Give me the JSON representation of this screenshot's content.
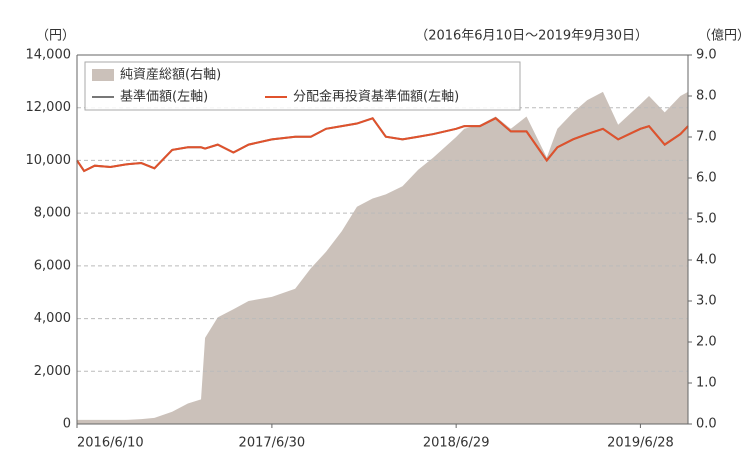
{
  "chart_data": {
    "type": "line",
    "annotation": "（2016年6月10日～2019年9月30日）",
    "ylabel": "（円）",
    "y2label": "（億円）",
    "x": [
      "2016/6/10",
      "2016/6/24",
      "2016/7/15",
      "2016/8/15",
      "2016/9/15",
      "2016/10/15",
      "2016/11/10",
      "2016/12/15",
      "2017/1/15",
      "2017/2/10",
      "2017/2/18",
      "2017/3/15",
      "2017/4/15",
      "2017/5/15",
      "2017/6/30",
      "2017/8/15",
      "2017/9/15",
      "2017/10/15",
      "2017/11/15",
      "2017/12/15",
      "2018/1/15",
      "2018/2/10",
      "2018/3/15",
      "2018/4/15",
      "2018/5/15",
      "2018/6/29",
      "2018/7/15",
      "2018/8/15",
      "2018/9/15",
      "2018/10/15",
      "2018/11/15",
      "2018/12/25",
      "2019/1/15",
      "2019/2/15",
      "2019/3/15",
      "2019/4/15",
      "2019/5/15",
      "2019/6/28",
      "2019/7/15",
      "2019/8/15",
      "2019/9/15",
      "2019/9/30"
    ],
    "series": [
      {
        "name": "純資産総額(右軸)",
        "type": "area",
        "axis": "y2",
        "color": "#cbc1ba",
        "values": [
          0.1,
          0.1,
          0.1,
          0.1,
          0.1,
          0.12,
          0.15,
          0.3,
          0.5,
          0.6,
          2.1,
          2.6,
          2.8,
          3.0,
          3.1,
          3.3,
          3.8,
          4.2,
          4.7,
          5.3,
          5.5,
          5.6,
          5.8,
          6.2,
          6.5,
          7.0,
          7.2,
          7.3,
          7.5,
          7.2,
          7.5,
          6.5,
          7.2,
          7.6,
          7.9,
          8.1,
          7.3,
          7.8,
          8.0,
          7.6,
          8.0,
          8.1
        ]
      },
      {
        "name": "基準価額(左軸)",
        "type": "line",
        "color": "#777777",
        "values": [
          10000,
          9600,
          9800,
          9750,
          9850,
          9900,
          9700,
          10400,
          10500,
          10500,
          10450,
          10600,
          10300,
          10600,
          10800,
          10900,
          10900,
          11200,
          11300,
          11400,
          11600,
          10900,
          10800,
          10900,
          11000,
          11200,
          11300,
          11300,
          11600,
          11100,
          11100,
          10000,
          10500,
          10800,
          11000,
          11200,
          10800,
          11200,
          11300,
          10600,
          11000,
          11300
        ]
      },
      {
        "name": "分配金再投資基準価額(左軸)",
        "type": "line",
        "color": "#e0522c",
        "values": [
          10000,
          9600,
          9800,
          9750,
          9850,
          9900,
          9700,
          10400,
          10500,
          10500,
          10450,
          10600,
          10300,
          10600,
          10800,
          10900,
          10900,
          11200,
          11300,
          11400,
          11600,
          10900,
          10800,
          10900,
          11000,
          11200,
          11300,
          11300,
          11600,
          11100,
          11100,
          10000,
          10500,
          10800,
          11000,
          11200,
          10800,
          11200,
          11300,
          10600,
          11000,
          11300
        ]
      }
    ],
    "xlim": [
      "2016/6/10",
      "2019/9/30"
    ],
    "xticks": [
      "2016/6/10",
      "2017/6/30",
      "2018/6/29",
      "2019/6/28"
    ],
    "ylim": [
      0,
      14000
    ],
    "yticks": [
      0,
      {
        "value": 2000,
        "label": "2,000"
      },
      {
        "value": 4000,
        "label": "4,000"
      },
      {
        "value": 6000,
        "label": "6,000"
      },
      {
        "value": 8000,
        "label": "8,000"
      },
      {
        "value": 10000,
        "label": "10,000"
      },
      {
        "value": 12000,
        "label": "12,000"
      },
      {
        "value": 14000,
        "label": "14,000"
      }
    ],
    "y2lim": [
      0,
      9
    ],
    "y2ticks": [
      {
        "value": 0,
        "label": "0.0"
      },
      {
        "value": 1,
        "label": "1.0"
      },
      {
        "value": 2,
        "label": "2.0"
      },
      {
        "value": 3,
        "label": "3.0"
      },
      {
        "value": 4,
        "label": "4.0"
      },
      {
        "value": 5,
        "label": "5.0"
      },
      {
        "value": 6,
        "label": "6.0"
      },
      {
        "value": 7,
        "label": "7.0"
      },
      {
        "value": 8,
        "label": "8.0"
      },
      {
        "value": 9,
        "label": "9.0"
      }
    ],
    "grid": true,
    "legend": "top-left"
  }
}
